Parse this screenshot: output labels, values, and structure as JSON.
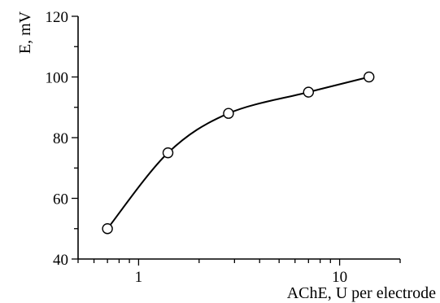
{
  "chart_data": {
    "type": "line",
    "title": "",
    "xlabel": "AChE, U per electrode",
    "ylabel": "E, mV",
    "x_scale": "log",
    "xlim": [
      0.5,
      20
    ],
    "ylim": [
      40,
      120
    ],
    "x_major_ticks": [
      1,
      10
    ],
    "x_tick_labels": [
      "1",
      "10"
    ],
    "y_major_ticks": [
      40,
      60,
      80,
      100,
      120
    ],
    "y_tick_labels": [
      "40",
      "60",
      "80",
      "100",
      "120"
    ],
    "grid": false,
    "legend": "none",
    "series": [
      {
        "x": [
          0.7,
          1.4,
          2.8,
          7,
          14
        ],
        "y": [
          50,
          75,
          88,
          95,
          100
        ],
        "marker": "open-circle",
        "line": "smooth"
      }
    ]
  }
}
